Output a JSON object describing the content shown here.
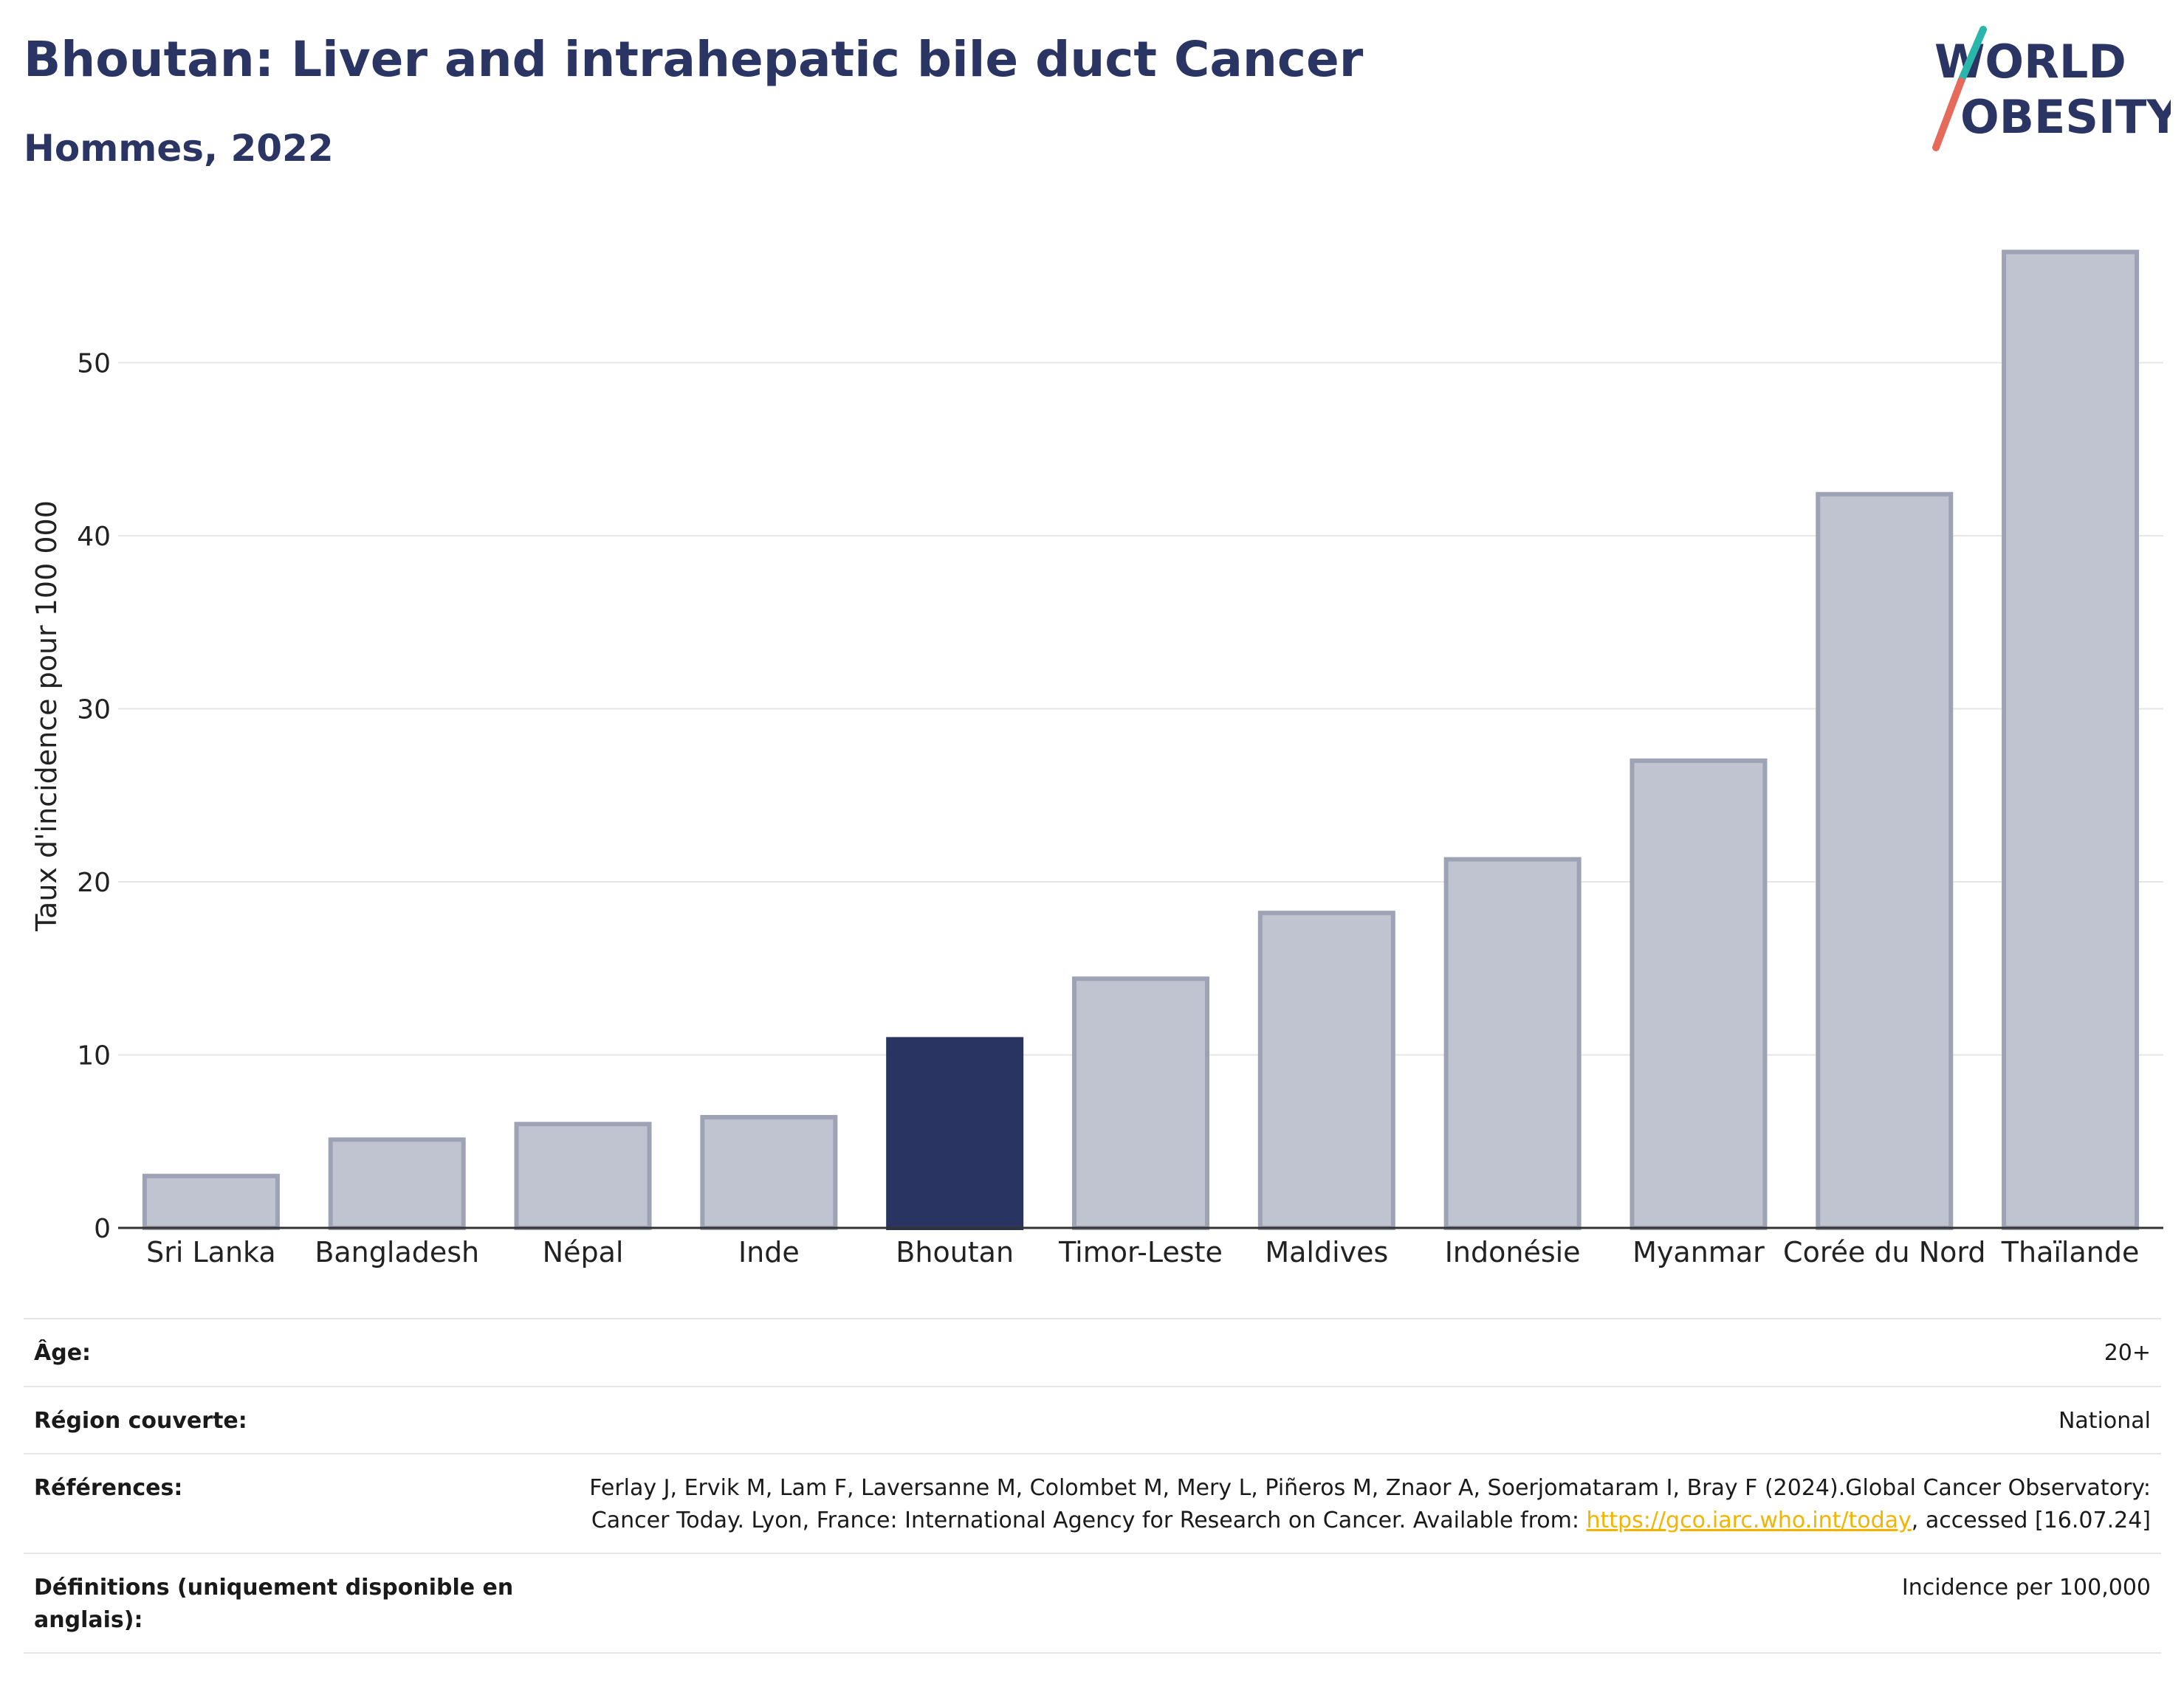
{
  "header": {
    "title": "Bhoutan: Liver and intrahepatic bile duct Cancer",
    "subtitle": "Hommes, 2022"
  },
  "logo": {
    "line1": "WORLD",
    "line2": "OBESITY",
    "colors": {
      "text": "#2b3564",
      "slash_top": "#2bb6ac",
      "slash_bottom": "#e66a5a"
    }
  },
  "colors": {
    "highlight": "#293462",
    "bar": "#c0c4d0",
    "bar_stroke": "#9da2b5",
    "grid": "#e6e6e6",
    "axis": "#333333"
  },
  "chart_data": {
    "type": "bar",
    "categories": [
      "Sri Lanka",
      "Bangladesh",
      "Népal",
      "Inde",
      "Bhoutan",
      "Timor-Leste",
      "Maldives",
      "Indonésie",
      "Myanmar",
      "Corée du Nord",
      "Thaïlande"
    ],
    "values": [
      3.0,
      5.1,
      6.0,
      6.4,
      10.9,
      14.4,
      18.2,
      21.3,
      27.0,
      42.4,
      56.4
    ],
    "highlight": "Bhoutan",
    "ylabel": "Taux d'incidence pour 100 000",
    "yticks": [
      0,
      10,
      20,
      30,
      40,
      50
    ],
    "ylim": [
      0,
      58
    ],
    "grid": true
  },
  "meta": {
    "rows": [
      {
        "label": "Âge:",
        "value": "20+"
      },
      {
        "label": "Région couverte:",
        "value": "National"
      },
      {
        "label": "Références:",
        "value_pre": "Ferlay J, Ervik M, Lam F, Laversanne M, Colombet M, Mery L, Piñeros M, Znaor A, Soerjomataram I, Bray F (2024).Global Cancer Observatory: Cancer Today. Lyon, France: International Agency for Research on Cancer. Available from: ",
        "link": "https://gco.iarc.who.int/today",
        "value_post": ", accessed [16.07.24]"
      },
      {
        "label": "Définitions (uniquement disponible en anglais):",
        "value": "Incidence per 100,000"
      }
    ]
  }
}
